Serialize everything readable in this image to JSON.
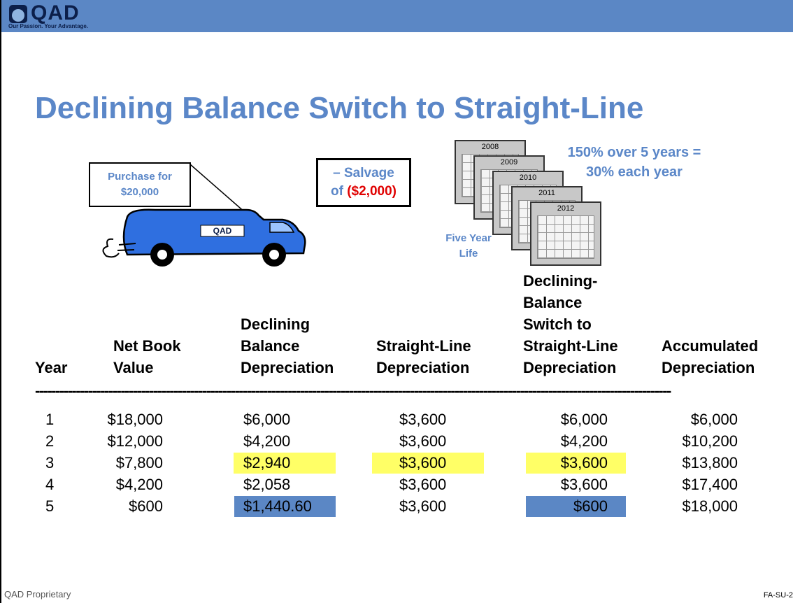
{
  "header": {
    "logo": "QAD",
    "tagline": "Our Passion. Your Advantage."
  },
  "title": "Declining Balance Switch to Straight-Line",
  "purchase_callout": [
    "Purchase for",
    "$20,000"
  ],
  "truck_label": "QAD",
  "salvage": {
    "line1": "– Salvage",
    "prefix": "of ",
    "amount": "($2,000)"
  },
  "calendars": [
    "2008",
    "2009",
    "2010",
    "2011",
    "2012"
  ],
  "rate_note": [
    "150% over 5 years =",
    "30% each year"
  ],
  "life_note": [
    "Five Year",
    "Life"
  ],
  "table": {
    "headers": [
      [
        "Year"
      ],
      [
        "Net Book",
        "Value"
      ],
      [
        "Declining",
        "Balance",
        "Depreciation"
      ],
      [
        "Straight-Line",
        "Depreciation"
      ],
      [
        "Declining-",
        "Balance",
        "Switch to",
        "Straight-Line",
        "Depreciation"
      ],
      [
        "Accumulated",
        "Depreciation"
      ]
    ],
    "divider": "------------------------------------------------------------------------------------------------------------------------------------------------------------",
    "rows": [
      [
        "1",
        "$18,000",
        "$6,000",
        "$3,600",
        "$6,000",
        "$6,000"
      ],
      [
        "2",
        "$12,000",
        "$4,200",
        "$3,600",
        "$4,200",
        "$10,200"
      ],
      [
        "3",
        "$7,800",
        "$2,940",
        "$3,600",
        "$3,600",
        "$13,800"
      ],
      [
        "4",
        "$4,200",
        "$2,058",
        "$3,600",
        "$3,600",
        "$17,400"
      ],
      [
        "5",
        "$600",
        "$1,440.60",
        "$3,600",
        "$600",
        "$18,000"
      ]
    ]
  },
  "footer": {
    "left": "QAD Proprietary",
    "right": "FA-SU-2"
  }
}
